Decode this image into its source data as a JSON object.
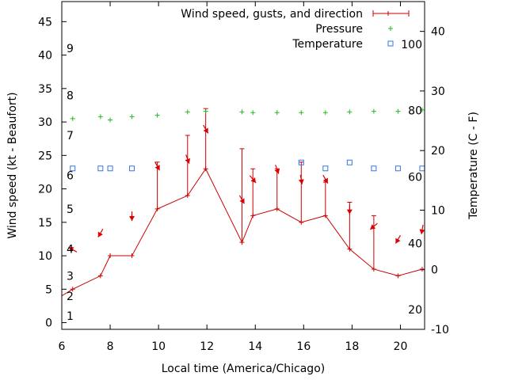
{
  "chart_data": {
    "type": "line",
    "xlabel": "Local time (America/Chicago)",
    "ylabel_left": "Wind speed (kt - Beaufort)",
    "ylabel_right": "Temperature (C - F)",
    "x_ticks": [
      6,
      8,
      10,
      12,
      14,
      16,
      18,
      20
    ],
    "xlim": [
      6,
      21
    ],
    "y_left_ticks": [
      0,
      5,
      10,
      15,
      20,
      25,
      30,
      35,
      40,
      45
    ],
    "y_left_lim": [
      -1,
      48
    ],
    "y_right_ticks": [
      -10,
      0,
      10,
      20,
      30,
      40
    ],
    "y_right_lim": [
      -10,
      45
    ],
    "beaufort_labels": [
      {
        "text": "1",
        "at": 1
      },
      {
        "text": "2",
        "at": 4
      },
      {
        "text": "3",
        "at": 7
      },
      {
        "text": "4",
        "at": 11
      },
      {
        "text": "5",
        "at": 17
      },
      {
        "text": "6",
        "at": 22
      },
      {
        "text": "7",
        "at": 28
      },
      {
        "text": "8",
        "at": 34
      },
      {
        "text": "9",
        "at": 41
      }
    ],
    "fahrenheit_labels": [
      {
        "text": "20",
        "at": -6.7
      },
      {
        "text": "40",
        "at": 4.4
      },
      {
        "text": "60",
        "at": 15.6
      },
      {
        "text": "80",
        "at": 26.7
      },
      {
        "text": "100",
        "at": 37.8
      }
    ],
    "legend": {
      "position": "top-right",
      "entries": [
        "Wind speed, gusts, and direction",
        "Pressure",
        "Temperature"
      ]
    },
    "colors": {
      "wind": "#cc0000",
      "pressure": "#22bb22",
      "temperature": "#3377dd",
      "arrow": "#dd0000"
    },
    "series": [
      {
        "name": "Wind speed, gusts, and direction",
        "x": [
          6,
          6.45,
          7.6,
          8,
          8.9,
          9.95,
          11.2,
          11.95,
          13.45,
          13.9,
          14.9,
          15.9,
          16.9,
          17.9,
          18.9,
          19.9,
          20.9
        ],
        "values": [
          4,
          5,
          7,
          10,
          10,
          17,
          19,
          23,
          12,
          16,
          17,
          15,
          16,
          11,
          8,
          7,
          8
        ],
        "gusts": [
          null,
          null,
          null,
          null,
          null,
          24,
          28,
          32,
          26,
          23,
          23,
          24,
          21,
          18,
          16,
          null,
          null
        ],
        "direction_deg": [
          null,
          120,
          30,
          null,
          0,
          330,
          340,
          330,
          330,
          320,
          340,
          350,
          330,
          0,
          50,
          30,
          10
        ]
      },
      {
        "name": "Pressure",
        "x": [
          6.45,
          7.6,
          8,
          8.9,
          9.95,
          11.2,
          11.95,
          13.45,
          13.9,
          14.9,
          15.9,
          16.9,
          17.9,
          18.9,
          19.9,
          20.9
        ],
        "values": [
          30.5,
          30.8,
          30.3,
          30.8,
          31,
          31.5,
          31.6,
          31.5,
          31.4,
          31.4,
          31.4,
          31.4,
          31.5,
          31.6,
          31.6,
          31.8
        ]
      },
      {
        "name": "Temperature",
        "x": [
          6.45,
          7.6,
          8,
          8.9,
          15.9,
          16.9,
          17.9,
          18.9,
          19.9,
          20.9
        ],
        "values": [
          17,
          17,
          17,
          17,
          18,
          17,
          18,
          17,
          17,
          17
        ]
      }
    ]
  }
}
